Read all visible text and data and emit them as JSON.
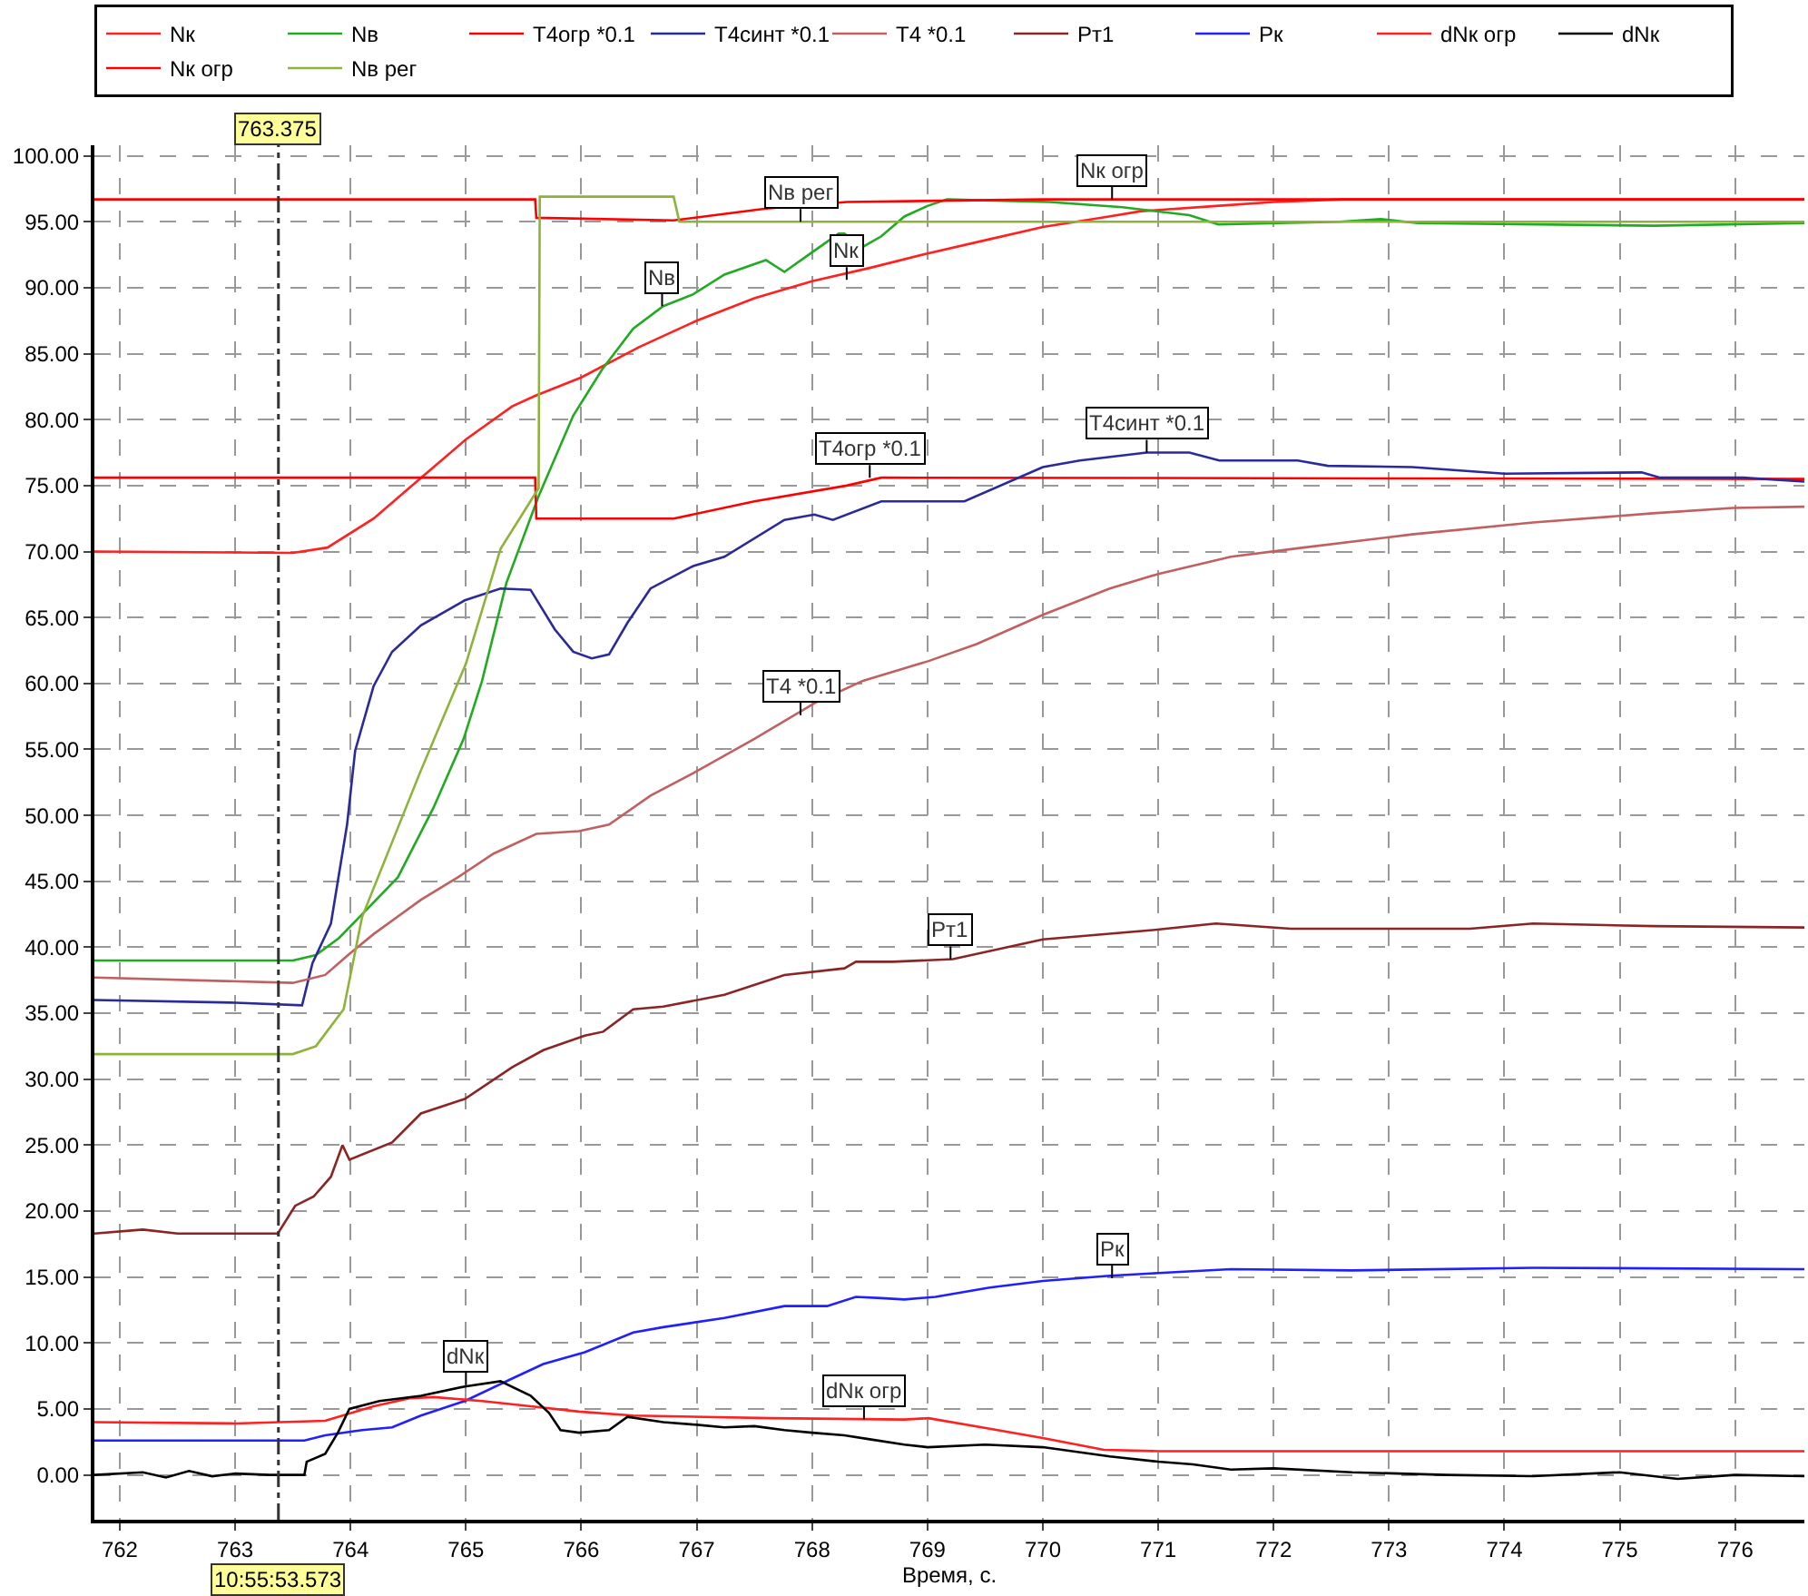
{
  "chart_data": {
    "type": "line",
    "xlabel": "Время, с.",
    "xlim": [
      761.78,
      776.6
    ],
    "ylim": [
      -3.4,
      100.8
    ],
    "xticks": [
      762,
      763,
      764,
      765,
      766,
      767,
      768,
      769,
      770,
      771,
      772,
      773,
      774,
      775,
      776
    ],
    "yticks": [
      {
        "value": 0,
        "label": "0.00"
      },
      {
        "value": 5,
        "label": "5.00"
      },
      {
        "value": 10,
        "label": "10.00"
      },
      {
        "value": 15,
        "label": "15.00"
      },
      {
        "value": 20,
        "label": "20.00"
      },
      {
        "value": 25,
        "label": "25.00"
      },
      {
        "value": 30,
        "label": "30.00"
      },
      {
        "value": 35,
        "label": "35.00"
      },
      {
        "value": 40,
        "label": "40.00"
      },
      {
        "value": 45,
        "label": "45.00"
      },
      {
        "value": 50,
        "label": "50.00"
      },
      {
        "value": 55,
        "label": "55.00"
      },
      {
        "value": 60,
        "label": "60.00"
      },
      {
        "value": 65,
        "label": "65.00"
      },
      {
        "value": 70,
        "label": "70.00"
      },
      {
        "value": 75,
        "label": "75.00"
      },
      {
        "value": 80,
        "label": "80.00"
      },
      {
        "value": 85,
        "label": "85.00"
      },
      {
        "value": 90,
        "label": "90.00"
      },
      {
        "value": 95,
        "label": "95.00"
      },
      {
        "value": 100,
        "label": "100.00"
      }
    ],
    "grid": true,
    "legend": "top",
    "marker": "none",
    "line_style": "solid",
    "series": [
      {
        "name": "Nк",
        "color": "#ff2020",
        "x": [
          761.78,
          763.5,
          763.8,
          764.2,
          764.6,
          765.0,
          765.4,
          765.6,
          766.0,
          766.5,
          767.0,
          767.5,
          768.0,
          768.5,
          769.0,
          769.5,
          770.0,
          770.5,
          770.85,
          771.5,
          772.0,
          772.6,
          776.6
        ],
        "values": [
          70.0,
          69.9,
          70.3,
          72.5,
          75.5,
          78.5,
          81.0,
          81.8,
          83.2,
          85.5,
          87.5,
          89.2,
          90.5,
          91.5,
          92.6,
          93.6,
          94.6,
          95.3,
          95.8,
          96.2,
          96.5,
          96.7,
          96.7
        ]
      },
      {
        "name": "Nв",
        "color": "#22aa22",
        "x": [
          761.78,
          763.5,
          763.7,
          763.9,
          764.1,
          764.41,
          764.72,
          764.98,
          765.14,
          765.35,
          765.46,
          765.63,
          765.93,
          766.18,
          766.45,
          766.71,
          766.97,
          767.24,
          767.6,
          767.76,
          767.97,
          768.23,
          768.28,
          768.44,
          768.6,
          768.8,
          769.0,
          769.17,
          770.06,
          770.69,
          771.27,
          771.52,
          772.57,
          772.93,
          773.25,
          775.3,
          776.6
        ],
        "values": [
          39.0,
          39.0,
          39.4,
          40.7,
          42.5,
          45.3,
          50.6,
          55.8,
          60.2,
          67.6,
          70.2,
          74.2,
          80.3,
          83.8,
          86.9,
          88.6,
          89.5,
          91.0,
          92.1,
          91.2,
          92.5,
          94.1,
          94.1,
          93.1,
          93.9,
          95.4,
          96.2,
          96.7,
          96.5,
          96.1,
          95.5,
          94.8,
          95.0,
          95.2,
          94.9,
          94.7,
          94.9
        ]
      },
      {
        "name": "T4огр *0.1",
        "color": "#ff0000",
        "x": [
          761.78,
          765.6,
          765.61,
          766.8,
          767.5,
          768.3,
          768.6,
          776.6
        ],
        "values": [
          75.6,
          75.6,
          72.5,
          72.5,
          73.8,
          75.0,
          75.6,
          75.5
        ]
      },
      {
        "name": "T4синт *0.1",
        "color": "#2a2a9a",
        "x": [
          761.78,
          763.0,
          763.58,
          763.67,
          763.83,
          763.97,
          764.04,
          764.2,
          764.36,
          764.61,
          764.99,
          765.3,
          765.56,
          765.77,
          765.93,
          766.09,
          766.24,
          766.4,
          766.6,
          766.97,
          767.24,
          767.76,
          768.02,
          768.18,
          768.6,
          769.0,
          769.32,
          770.0,
          770.32,
          770.9,
          771.27,
          771.53,
          772.21,
          772.47,
          773.2,
          774.0,
          775.19,
          775.35,
          776.07,
          776.6
        ],
        "values": [
          36.0,
          35.8,
          35.6,
          38.8,
          41.8,
          49.3,
          54.9,
          59.8,
          62.4,
          64.4,
          66.3,
          67.2,
          67.1,
          64.1,
          62.4,
          61.9,
          62.2,
          64.6,
          67.2,
          68.9,
          69.6,
          72.4,
          72.8,
          72.4,
          73.8,
          73.8,
          73.8,
          76.4,
          76.9,
          77.5,
          77.5,
          76.9,
          76.9,
          76.5,
          76.4,
          75.9,
          76.0,
          75.6,
          75.6,
          75.3
        ]
      },
      {
        "name": "T4 *0.1",
        "color": "#c06060",
        "x": [
          761.78,
          763.5,
          763.78,
          763.99,
          764.2,
          764.61,
          764.93,
          765.24,
          765.61,
          765.98,
          766.24,
          766.6,
          766.97,
          767.5,
          768.02,
          768.44,
          769.01,
          769.43,
          770.0,
          770.58,
          771.0,
          771.63,
          772.26,
          773.2,
          774.25,
          775.29,
          775.98,
          776.6
        ],
        "values": [
          37.7,
          37.3,
          37.9,
          39.5,
          41.0,
          43.6,
          45.3,
          47.1,
          48.6,
          48.8,
          49.3,
          51.5,
          53.2,
          55.8,
          58.5,
          60.2,
          61.7,
          63.0,
          65.2,
          67.2,
          68.3,
          69.6,
          70.3,
          71.3,
          72.2,
          72.9,
          73.3,
          73.4
        ]
      },
      {
        "name": "Рт1",
        "color": "#8b2525",
        "x": [
          761.78,
          762.2,
          762.5,
          763.0,
          763.37,
          763.52,
          763.68,
          763.83,
          763.93,
          763.99,
          764.36,
          764.61,
          764.99,
          765.4,
          765.67,
          766.03,
          766.19,
          766.45,
          766.71,
          767.24,
          767.76,
          768.28,
          768.38,
          768.7,
          769.22,
          770.0,
          770.95,
          771.5,
          772.15,
          773.7,
          774.25,
          775.3,
          776.6
        ],
        "values": [
          18.3,
          18.6,
          18.3,
          18.3,
          18.3,
          20.4,
          21.1,
          22.6,
          25.0,
          23.9,
          25.2,
          27.4,
          28.5,
          30.9,
          32.2,
          33.3,
          33.6,
          35.3,
          35.5,
          36.4,
          37.9,
          38.4,
          38.9,
          38.9,
          39.1,
          40.6,
          41.3,
          41.8,
          41.4,
          41.4,
          41.8,
          41.6,
          41.5
        ]
      },
      {
        "name": "Рк",
        "color": "#2020ff",
        "x": [
          761.78,
          763.6,
          763.78,
          764.1,
          764.36,
          764.61,
          764.99,
          765.4,
          765.67,
          766.03,
          766.45,
          766.71,
          767.24,
          767.76,
          768.13,
          768.38,
          768.6,
          768.8,
          769.07,
          769.54,
          770.0,
          770.58,
          771.0,
          771.63,
          772.68,
          774.25,
          776.6
        ],
        "values": [
          2.6,
          2.6,
          3.0,
          3.4,
          3.6,
          4.5,
          5.6,
          7.3,
          8.4,
          9.3,
          10.8,
          11.2,
          11.9,
          12.8,
          12.8,
          13.5,
          13.4,
          13.3,
          13.5,
          14.2,
          14.7,
          15.1,
          15.3,
          15.6,
          15.5,
          15.7,
          15.6
        ]
      },
      {
        "name": "dNк огр",
        "color": "#ff2020",
        "x": [
          761.78,
          763.0,
          763.78,
          764.2,
          764.51,
          764.72,
          765.14,
          765.56,
          765.98,
          766.45,
          767.65,
          768.8,
          769.01,
          769.54,
          770.0,
          770.53,
          771.0,
          776.6
        ],
        "values": [
          4.0,
          3.9,
          4.1,
          5.2,
          5.8,
          5.9,
          5.6,
          5.2,
          4.8,
          4.5,
          4.3,
          4.2,
          4.3,
          3.5,
          2.8,
          1.9,
          1.8,
          1.8
        ]
      },
      {
        "name": "dNк",
        "color": "#000000",
        "x": [
          761.78,
          762.2,
          762.4,
          762.6,
          762.8,
          763.0,
          763.3,
          763.6,
          763.62,
          763.78,
          763.89,
          763.99,
          764.25,
          764.61,
          764.99,
          765.3,
          765.56,
          765.72,
          765.82,
          765.98,
          766.24,
          766.4,
          766.71,
          767.0,
          767.24,
          767.5,
          767.76,
          768.0,
          768.28,
          768.5,
          768.8,
          769.0,
          769.5,
          770.0,
          770.58,
          771.0,
          771.3,
          771.63,
          772.0,
          772.68,
          773.5,
          774.25,
          775.0,
          775.5,
          776.0,
          776.6
        ],
        "values": [
          0.0,
          0.2,
          -0.2,
          0.3,
          -0.1,
          0.1,
          0.0,
          0.0,
          1.0,
          1.6,
          3.2,
          5.0,
          5.6,
          6.0,
          6.7,
          7.1,
          6.0,
          4.7,
          3.4,
          3.2,
          3.4,
          4.4,
          4.0,
          3.8,
          3.6,
          3.7,
          3.4,
          3.2,
          3.0,
          2.7,
          2.3,
          2.1,
          2.3,
          2.1,
          1.4,
          1.0,
          0.8,
          0.4,
          0.5,
          0.2,
          0.0,
          -0.1,
          0.2,
          -0.3,
          0.0,
          -0.1
        ]
      },
      {
        "name": "Nк огр",
        "color": "#ff0000",
        "x": [
          761.78,
          765.6,
          765.61,
          766.8,
          767.6,
          768.3,
          770.0,
          776.6
        ],
        "values": [
          96.7,
          96.7,
          95.3,
          95.1,
          96.0,
          96.5,
          96.7,
          96.7
        ]
      },
      {
        "name": "Nв рег",
        "color": "#8db33a",
        "x": [
          761.78,
          763.5,
          763.7,
          763.94,
          764.1,
          764.6,
          765.0,
          765.3,
          765.63,
          765.64,
          766.8,
          766.85,
          776.6
        ],
        "values": [
          31.9,
          31.9,
          32.5,
          35.3,
          42.3,
          53.2,
          61.5,
          70.2,
          74.8,
          96.9,
          96.9,
          95.0,
          95.0
        ]
      }
    ],
    "ref_lines": [
      {
        "axis": "x",
        "value": 763.375,
        "label": "763.375",
        "color": "#333333",
        "line_style": "dashdot"
      }
    ],
    "annotations": [
      {
        "text": "Nв рег",
        "x": 767.9,
        "y": 95.0
      },
      {
        "text": "Nк огр",
        "x": 770.6,
        "y": 96.7
      },
      {
        "text": "Nв",
        "x": 766.7,
        "y": 88.6
      },
      {
        "text": "Nк",
        "x": 768.3,
        "y": 90.6
      },
      {
        "text": "T4огр *0.1",
        "x": 768.5,
        "y": 75.6
      },
      {
        "text": "T4синт *0.1",
        "x": 770.9,
        "y": 77.5
      },
      {
        "text": "T4 *0.1",
        "x": 767.9,
        "y": 57.6
      },
      {
        "text": "Рт1",
        "x": 769.2,
        "y": 39.1
      },
      {
        "text": "Рк",
        "x": 770.6,
        "y": 14.9
      },
      {
        "text": "dNк",
        "x": 765.0,
        "y": 6.8
      },
      {
        "text": "dNк огр",
        "x": 768.45,
        "y": 4.2
      },
      "10:55:53.573"
    ]
  }
}
